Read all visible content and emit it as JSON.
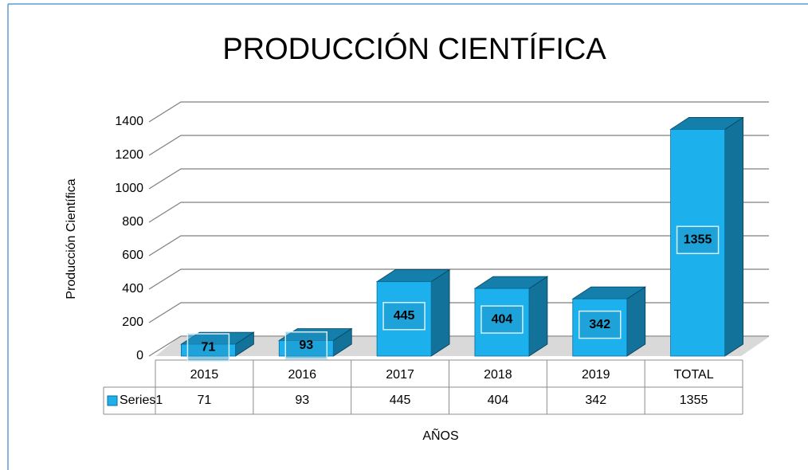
{
  "chart_data": {
    "type": "bar3d",
    "title": "PRODUCCIÓN CIENTÍFICA",
    "y_label": "Producción Científica",
    "x_label": "AÑOS",
    "categories": [
      "2015",
      "2016",
      "2017",
      "2018",
      "2019",
      "TOTAL"
    ],
    "series": [
      {
        "name": "Series1",
        "color": "#1cb0ec",
        "values": [
          71,
          93,
          445,
          404,
          342,
          1355
        ]
      }
    ],
    "ylim": [
      0,
      1400
    ],
    "yticks": [
      0,
      200,
      400,
      600,
      800,
      1000,
      1200,
      1400
    ],
    "grid": true,
    "data_table": true
  }
}
